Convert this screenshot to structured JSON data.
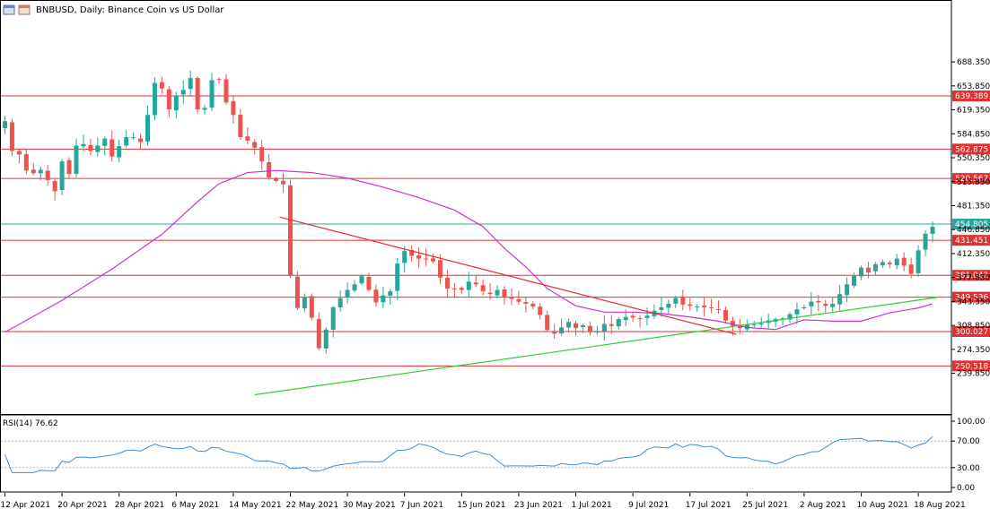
{
  "window": {
    "title": "BNBUSD, Daily:  Binance Coin vs US Dollar",
    "indicator_label": "RSI(14) 76.62"
  },
  "colors": {
    "bull": "#26a69a",
    "bear": "#ef5350",
    "ma": "#cc33cc",
    "hline": "#e03030",
    "resistance_trend": "#e03030",
    "support_trend": "#33cc33",
    "current_price_line": "#26a69a",
    "rsi": "#3a8fd9"
  },
  "chart_data": [
    {
      "type": "candlestick",
      "title": "BNBUSD, Daily:  Binance Coin vs US Dollar",
      "ylim": [
        205,
        720
      ],
      "y_ticks": [
        "688.350",
        "653.850",
        "619.350",
        "584.850",
        "550.350",
        "515.850",
        "481.350",
        "446.850",
        "412.350",
        "377.850",
        "343.350",
        "308.850",
        "274.350",
        "239.850"
      ],
      "x_ticks": [
        "12 Apr 2021",
        "20 Apr 2021",
        "28 Apr 2021",
        "6 May 2021",
        "14 May 2021",
        "22 May 2021",
        "30 May 2021",
        "7 Jun 2021",
        "15 Jun 2021",
        "23 Jun 2021",
        "1 Jul 2021",
        "9 Jul 2021",
        "17 Jul 2021",
        "25 Jul 2021",
        "2 Aug 2021",
        "10 Aug 2021",
        "18 Aug 2021"
      ],
      "horizontal_levels": [
        {
          "label": "639.389",
          "value": 639.389,
          "style": "red"
        },
        {
          "label": "562.875",
          "value": 562.875,
          "style": "red"
        },
        {
          "label": "520.567",
          "value": 520.567,
          "style": "red"
        },
        {
          "label": "454.805",
          "value": 454.805,
          "style": "current"
        },
        {
          "label": "431.451",
          "value": 431.451,
          "style": "red"
        },
        {
          "label": "381.042",
          "value": 381.042,
          "style": "red"
        },
        {
          "label": "349.536",
          "value": 349.536,
          "style": "red"
        },
        {
          "label": "300.027",
          "value": 300.027,
          "style": "red"
        },
        {
          "label": "250.518",
          "value": 250.518,
          "style": "red"
        }
      ],
      "trendlines": [
        {
          "kind": "resistance",
          "from": [
            38.5,
            465
          ],
          "to": [
            102.5,
            296
          ]
        },
        {
          "kind": "support",
          "from": [
            35,
            209
          ],
          "to": [
            130.5,
            349
          ]
        }
      ],
      "ma_series": [
        [
          0,
          299
        ],
        [
          8,
          345
        ],
        [
          15,
          390
        ],
        [
          22,
          440
        ],
        [
          27,
          487
        ],
        [
          30,
          513
        ],
        [
          34,
          529
        ],
        [
          38,
          532
        ],
        [
          43,
          529
        ],
        [
          48,
          521
        ],
        [
          53,
          508
        ],
        [
          58,
          493
        ],
        [
          63,
          475
        ],
        [
          67,
          451
        ],
        [
          70,
          420
        ],
        [
          73,
          393
        ],
        [
          76,
          362
        ],
        [
          80,
          337
        ],
        [
          84,
          328
        ],
        [
          88,
          328
        ],
        [
          92,
          326
        ],
        [
          96,
          321
        ],
        [
          100,
          315
        ],
        [
          104,
          306
        ],
        [
          108,
          303
        ],
        [
          112,
          317
        ],
        [
          116,
          315
        ],
        [
          120,
          315
        ],
        [
          124,
          327
        ],
        [
          128,
          334
        ],
        [
          130,
          340
        ]
      ]
    },
    {
      "type": "line",
      "title": "RSI(14) 76.62",
      "ylim": [
        0,
        100
      ],
      "y_ticks": [
        "100.00",
        "70.00",
        "30.00",
        "0.00"
      ],
      "levels": [
        70,
        30
      ]
    }
  ]
}
